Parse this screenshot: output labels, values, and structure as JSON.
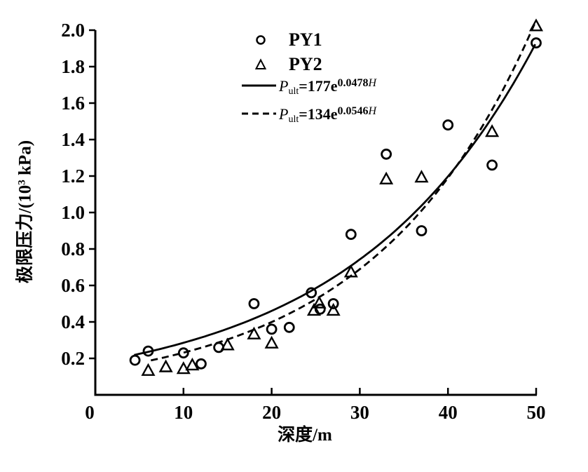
{
  "figure": {
    "background": "#ffffff",
    "ink": "#000000"
  },
  "chart_data": {
    "type": "scatter",
    "title": "",
    "xlabel": "深度/m",
    "ylabel": "极限压力/(10³ kPa)",
    "ylabel_parts": {
      "prefix": "极限压力/(10",
      "sup": "3",
      "suffix": " kPa)"
    },
    "xlim": [
      0,
      50
    ],
    "ylim": [
      0,
      2.0
    ],
    "grid": false,
    "legend_position": "upper-center",
    "x_ticks": [
      "0",
      "10",
      "20",
      "30",
      "40",
      "50"
    ],
    "y_ticks": [
      "0.2",
      "0.4",
      "0.6",
      "0.8",
      "1.0",
      "1.2",
      "1.4",
      "1.6",
      "1.8",
      "2.0"
    ],
    "series": [
      {
        "name": "PY1",
        "marker": "circle",
        "points": [
          [
            4.5,
            0.19
          ],
          [
            6,
            0.24
          ],
          [
            10,
            0.23
          ],
          [
            12,
            0.17
          ],
          [
            14,
            0.26
          ],
          [
            18,
            0.5
          ],
          [
            20,
            0.36
          ],
          [
            22,
            0.37
          ],
          [
            24.5,
            0.56
          ],
          [
            25.5,
            0.47
          ],
          [
            27,
            0.5
          ],
          [
            29,
            0.88
          ],
          [
            33,
            1.32
          ],
          [
            37,
            0.9
          ],
          [
            40,
            1.48
          ],
          [
            45,
            1.26
          ],
          [
            50,
            1.93
          ]
        ]
      },
      {
        "name": "PY2",
        "marker": "triangle",
        "points": [
          [
            6,
            0.13
          ],
          [
            8,
            0.15
          ],
          [
            10,
            0.14
          ],
          [
            11,
            0.16
          ],
          [
            15,
            0.27
          ],
          [
            18,
            0.33
          ],
          [
            20,
            0.28
          ],
          [
            24.8,
            0.46
          ],
          [
            25.4,
            0.5
          ],
          [
            27,
            0.46
          ],
          [
            29,
            0.67
          ],
          [
            33,
            1.18
          ],
          [
            37,
            1.19
          ],
          [
            45,
            1.44
          ],
          [
            50,
            2.02
          ]
        ]
      }
    ],
    "fits": [
      {
        "name": "PY1-fit",
        "style": "solid",
        "equation": "Pult=177e^(0.0478H)",
        "coef_kPa": 177,
        "exp_coef": 0.0478,
        "x_start": 4.4,
        "x_end": 50,
        "label_parts": {
          "p": "P",
          "sub": "ult",
          "mid": "=177e",
          "exp": "0.0478",
          "var": "H"
        }
      },
      {
        "name": "PY2-fit",
        "style": "dashed",
        "equation": "Pult=134e^(0.0546H)",
        "coef_kPa": 134,
        "exp_coef": 0.0546,
        "x_start": 6.3,
        "x_end": 50,
        "label_parts": {
          "p": "P",
          "sub": "ult",
          "mid": "=134e",
          "exp": "0.0546",
          "var": "H"
        }
      }
    ]
  }
}
